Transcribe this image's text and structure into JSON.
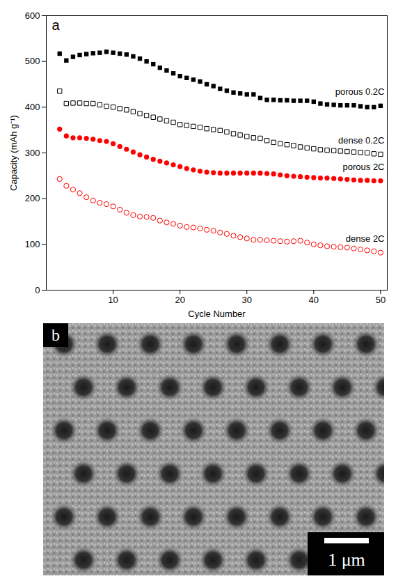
{
  "chart_data": {
    "type": "scatter",
    "panel_label": "a",
    "x_label": "Cycle Number",
    "y_label": "Capacity (mAh g⁻¹)",
    "xlim": [
      0,
      51
    ],
    "xticks": [
      10,
      20,
      30,
      40,
      50
    ],
    "ylim": [
      0,
      600
    ],
    "yticks": [
      0,
      100,
      200,
      300,
      400,
      500,
      600
    ],
    "x": [
      2,
      3,
      4,
      5,
      6,
      7,
      8,
      9,
      10,
      11,
      12,
      13,
      14,
      15,
      16,
      17,
      18,
      19,
      20,
      21,
      22,
      23,
      24,
      25,
      26,
      27,
      28,
      29,
      30,
      31,
      32,
      33,
      34,
      35,
      36,
      37,
      38,
      39,
      40,
      41,
      42,
      43,
      44,
      45,
      46,
      47,
      48,
      49,
      50
    ],
    "series": [
      {
        "name": "porous 0.2C",
        "color": "#000000",
        "marker": "square",
        "values": [
          517,
          502,
          510,
          514,
          516,
          518,
          519,
          521,
          519,
          517,
          515,
          511,
          506,
          500,
          494,
          486,
          480,
          474,
          468,
          464,
          460,
          456,
          450,
          446,
          440,
          436,
          432,
          430,
          428,
          428,
          420,
          416,
          416,
          415,
          415,
          414,
          414,
          414,
          412,
          408,
          406,
          405,
          404,
          404,
          404,
          402,
          400,
          400,
          403
        ]
      },
      {
        "name": "dense 0.2C",
        "color": "#000000",
        "marker": "square-open",
        "values": [
          435,
          408,
          409,
          409,
          408,
          408,
          405,
          402,
          400,
          397,
          394,
          390,
          386,
          382,
          378,
          374,
          370,
          367,
          362,
          360,
          358,
          356,
          353,
          351,
          349,
          346,
          342,
          339,
          336,
          333,
          332,
          327,
          323,
          320,
          318,
          316,
          313,
          311,
          309,
          307,
          306,
          305,
          304,
          303,
          302,
          301,
          300,
          298,
          297
        ]
      },
      {
        "name": "porous 2C",
        "color": "#ff0000",
        "marker": "circle",
        "values": [
          352,
          337,
          333,
          333,
          332,
          330,
          327,
          325,
          320,
          314,
          308,
          302,
          296,
          291,
          286,
          282,
          278,
          274,
          270,
          266,
          263,
          260,
          258,
          257,
          256,
          256,
          256,
          256,
          256,
          256,
          256,
          255,
          254,
          252,
          250,
          249,
          248,
          247,
          246,
          245,
          245,
          244,
          243,
          242,
          241,
          240,
          240,
          239,
          239
        ]
      },
      {
        "name": "dense 2C",
        "color": "#ff0000",
        "marker": "circle-open",
        "values": [
          243,
          228,
          220,
          212,
          203,
          196,
          191,
          188,
          183,
          176,
          169,
          164,
          161,
          160,
          158,
          152,
          148,
          145,
          141,
          138,
          137,
          135,
          132,
          130,
          126,
          123,
          119,
          116,
          113,
          110,
          110,
          109,
          108,
          107,
          106,
          107,
          108,
          104,
          100,
          98,
          96,
          95,
          94,
          93,
          91,
          89,
          87,
          85,
          82
        ]
      }
    ]
  },
  "panel_b": {
    "label": "b",
    "scale_bar": "1 μm"
  }
}
